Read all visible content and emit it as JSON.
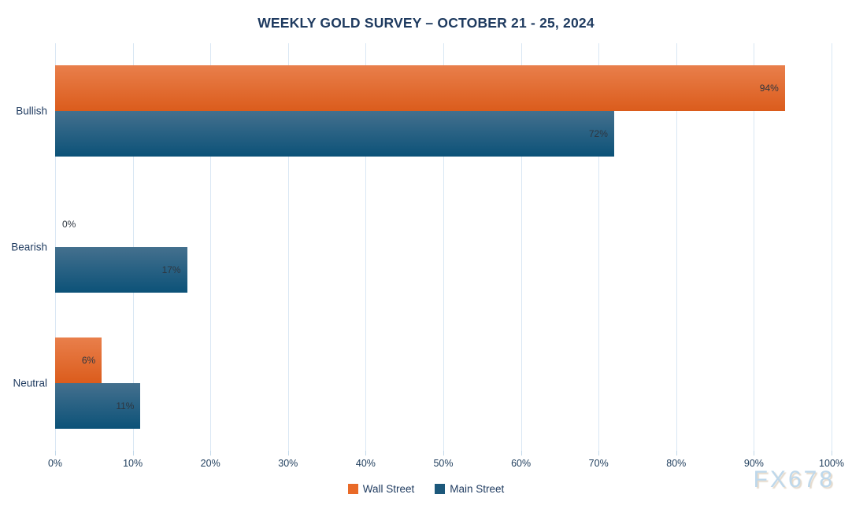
{
  "title": "WEEKLY GOLD SURVEY – OCTOBER 21 - 25, 2024",
  "watermark": "FX678",
  "colors": {
    "title_text": "#1E3A5F",
    "axis_text": "#22405F",
    "data_label_text": "#2E3640",
    "gridline": "#D9E7F4",
    "tick_mark": "#C2D8EA",
    "watermark_text": "#BED8EB"
  },
  "chart_data": {
    "type": "bar",
    "orientation": "horizontal",
    "title": "WEEKLY GOLD SURVEY – OCTOBER 21 - 25, 2024",
    "categories": [
      "Bullish",
      "Bearish",
      "Neutral"
    ],
    "series": [
      {
        "name": "Wall Street",
        "values": [
          94,
          0,
          6
        ],
        "labels": [
          "94%",
          "0%",
          "6%"
        ],
        "color_top": "#E97F4B",
        "color_bottom": "#DB5C1C",
        "legend_color": "#E96A28"
      },
      {
        "name": "Main Street",
        "values": [
          72,
          17,
          11
        ],
        "labels": [
          "72%",
          "17%",
          "11%"
        ],
        "color_top": "#44708E",
        "color_bottom": "#0C5278",
        "legend_color": "#1C587B"
      }
    ],
    "xlim": [
      0,
      100
    ],
    "x_ticks": [
      "0%",
      "10%",
      "20%",
      "30%",
      "40%",
      "50%",
      "60%",
      "70%",
      "80%",
      "90%",
      "100%"
    ],
    "xlabel": "",
    "ylabel": "",
    "grid": true,
    "legend_position": "bottom"
  }
}
